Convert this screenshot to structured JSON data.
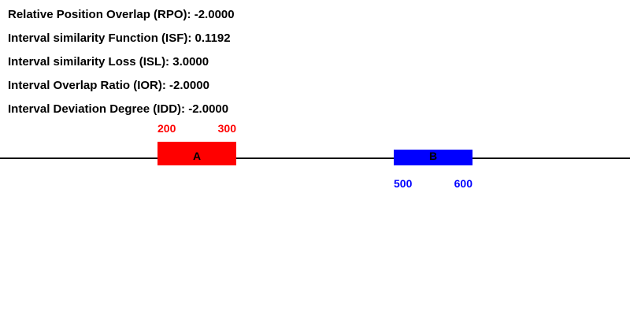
{
  "metrics": [
    {
      "label": "Relative Position Overlap (RPO)",
      "value": "-2.0000"
    },
    {
      "label": "Interval similarity Function (ISF)",
      "value": "0.1192"
    },
    {
      "label": "Interval similarity Loss (ISL)",
      "value": "3.0000"
    },
    {
      "label": "Interval Overlap Ratio (IOR)",
      "value": "-2.0000"
    },
    {
      "label": "Interval Deviation Degree (IDD)",
      "value": "-2.0000"
    }
  ],
  "intervals": [
    {
      "name": "A",
      "start": 200,
      "end": 300,
      "color": "#ff0000",
      "label_position": "above"
    },
    {
      "name": "B",
      "start": 500,
      "end": 600,
      "color": "#0000ff",
      "label_position": "below"
    }
  ],
  "axis": {
    "color": "#000000"
  }
}
